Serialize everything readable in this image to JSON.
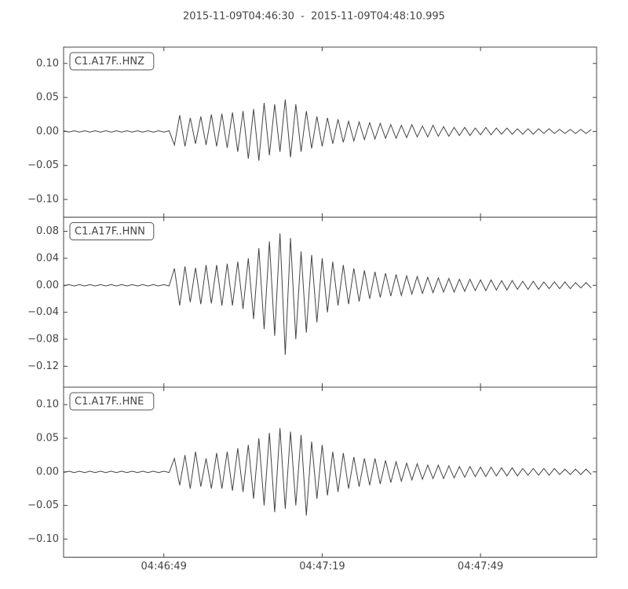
{
  "chart_data": {
    "type": "line",
    "title": "2015-11-09T04:46:30  -  2015-11-09T04:48:10.995",
    "x": [
      0,
      1,
      2,
      3,
      4,
      5,
      6,
      7,
      8,
      9,
      10,
      11,
      12,
      13,
      14,
      15,
      16,
      17,
      18,
      19,
      20,
      21,
      22,
      23,
      24,
      25,
      26,
      27,
      28,
      29,
      30,
      31,
      32,
      33,
      34,
      35,
      36,
      37,
      38,
      39,
      40,
      41,
      42,
      43,
      44,
      45,
      46,
      47,
      48,
      49,
      50,
      51,
      52,
      53,
      54,
      55,
      56,
      57,
      58,
      59,
      60,
      61,
      62,
      63,
      64,
      65,
      66,
      67,
      68,
      69,
      70,
      71,
      72,
      73,
      74,
      75,
      76,
      77,
      78,
      79,
      80,
      81,
      82,
      83,
      84,
      85,
      86,
      87,
      88,
      89,
      90,
      91,
      92,
      93,
      94,
      95,
      96,
      97,
      98,
      99,
      100
    ],
    "xlim": [
      0,
      100.995
    ],
    "xticks": [
      {
        "value": 19,
        "label": "04:46:49"
      },
      {
        "value": 49,
        "label": "04:47:19"
      },
      {
        "value": 79,
        "label": "04:47:49"
      }
    ],
    "panels": [
      {
        "ylim": [
          -0.126,
          0.124
        ],
        "yticks": [
          {
            "value": 0.1,
            "label": "0.10"
          },
          0.05,
          {
            "value": 0,
            "label": "0.00"
          },
          {
            "value": -0.05,
            "label": "−0.05"
          },
          {
            "value": -0.1,
            "label": "−0.10"
          }
        ],
        "series": [
          {
            "name": "C1.A17F..HNZ",
            "color": "#444444",
            "values": [
              0.001,
              -0.001,
              0.001,
              -0.001,
              0.001,
              -0.001,
              0.001,
              -0.001,
              0.001,
              -0.001,
              0.001,
              -0.001,
              0.001,
              -0.001,
              0.001,
              -0.001,
              0.001,
              -0.001,
              0.001,
              -0.001,
              0.001,
              -0.02,
              0.024,
              -0.022,
              0.02,
              -0.018,
              0.022,
              -0.02,
              0.025,
              -0.022,
              0.026,
              -0.024,
              0.028,
              -0.03,
              0.03,
              -0.04,
              0.033,
              -0.043,
              0.042,
              -0.035,
              0.04,
              -0.03,
              0.047,
              -0.038,
              0.04,
              -0.03,
              0.03,
              -0.025,
              0.022,
              -0.022,
              0.02,
              -0.018,
              0.018,
              -0.016,
              0.015,
              -0.014,
              0.014,
              -0.012,
              0.013,
              -0.011,
              0.012,
              -0.01,
              0.01,
              -0.01,
              0.009,
              -0.009,
              0.01,
              -0.008,
              0.008,
              -0.008,
              0.009,
              -0.007,
              0.007,
              -0.007,
              0.006,
              -0.006,
              0.006,
              -0.006,
              0.005,
              -0.005,
              0.006,
              -0.005,
              0.005,
              -0.004,
              0.005,
              -0.004,
              0.004,
              -0.004,
              0.004,
              -0.004,
              0.004,
              -0.003,
              0.004,
              -0.003,
              0.003,
              -0.003,
              0.003,
              -0.003,
              0.003,
              -0.003,
              0.003
            ]
          }
        ]
      },
      {
        "ylim": [
          -0.151,
          0.101
        ],
        "yticks": [
          0.08,
          0.04,
          {
            "value": 0,
            "label": "0.00"
          },
          {
            "value": -0.04,
            "label": "−0.04"
          },
          {
            "value": -0.08,
            "label": "−0.08"
          },
          {
            "value": -0.12,
            "label": "−0.12"
          }
        ],
        "series": [
          {
            "name": "C1.A17F..HNN",
            "color": "#444444",
            "values": [
              -0.001,
              0.001,
              -0.001,
              0.001,
              -0.001,
              0.001,
              -0.001,
              0.001,
              -0.001,
              0.001,
              -0.001,
              0.001,
              -0.001,
              0.001,
              -0.001,
              0.001,
              -0.001,
              0.001,
              -0.001,
              0.001,
              -0.001,
              0.025,
              -0.03,
              0.028,
              -0.025,
              0.026,
              -0.028,
              0.03,
              -0.027,
              0.03,
              -0.03,
              0.032,
              -0.03,
              0.035,
              -0.035,
              0.04,
              -0.05,
              0.055,
              -0.065,
              0.065,
              -0.075,
              0.077,
              -0.103,
              0.07,
              -0.08,
              0.05,
              -0.07,
              0.045,
              -0.055,
              0.04,
              -0.04,
              0.035,
              -0.03,
              0.03,
              -0.028,
              0.025,
              -0.024,
              0.022,
              -0.02,
              0.02,
              -0.018,
              0.018,
              -0.016,
              0.016,
              -0.015,
              0.014,
              -0.013,
              0.013,
              -0.012,
              0.012,
              -0.011,
              0.011,
              -0.01,
              0.01,
              -0.01,
              0.009,
              -0.009,
              0.009,
              -0.008,
              0.008,
              -0.008,
              0.008,
              -0.007,
              0.007,
              -0.007,
              0.007,
              -0.006,
              0.006,
              -0.006,
              0.006,
              -0.006,
              0.005,
              -0.005,
              0.005,
              -0.005,
              0.005,
              -0.005,
              0.004,
              -0.004,
              0.004,
              -0.004
            ]
          }
        ]
      },
      {
        "ylim": [
          -0.127,
          0.126
        ],
        "yticks": [
          {
            "value": 0.1,
            "label": "0.10"
          },
          0.05,
          {
            "value": 0,
            "label": "0.00"
          },
          {
            "value": -0.05,
            "label": "−0.05"
          },
          {
            "value": -0.1,
            "label": "−0.10"
          }
        ],
        "series": [
          {
            "name": "C1.A17F..HNE",
            "color": "#444444",
            "values": [
              -0.001,
              0.001,
              -0.001,
              0.001,
              -0.001,
              0.001,
              -0.001,
              0.001,
              -0.001,
              0.001,
              -0.001,
              0.001,
              -0.001,
              0.001,
              -0.001,
              0.001,
              -0.001,
              0.001,
              -0.001,
              0.001,
              -0.001,
              0.02,
              -0.02,
              0.025,
              -0.025,
              0.03,
              -0.022,
              0.02,
              -0.025,
              0.028,
              -0.025,
              0.03,
              -0.028,
              0.035,
              -0.03,
              0.04,
              -0.04,
              0.05,
              -0.05,
              0.058,
              -0.06,
              0.065,
              -0.055,
              0.06,
              -0.05,
              0.055,
              -0.065,
              0.045,
              -0.04,
              0.04,
              -0.035,
              0.03,
              -0.03,
              0.028,
              -0.025,
              0.022,
              -0.022,
              0.02,
              -0.02,
              0.02,
              -0.018,
              0.017,
              -0.016,
              0.015,
              -0.014,
              0.013,
              -0.012,
              0.012,
              -0.011,
              0.01,
              -0.01,
              0.01,
              -0.01,
              0.009,
              -0.009,
              0.008,
              -0.008,
              0.008,
              -0.007,
              0.007,
              -0.007,
              0.007,
              -0.006,
              0.006,
              -0.006,
              0.006,
              -0.006,
              0.005,
              -0.005,
              0.005,
              -0.005,
              0.005,
              -0.005,
              0.005,
              -0.004,
              0.004,
              -0.004,
              0.004,
              -0.004,
              0.004,
              -0.004
            ]
          }
        ]
      }
    ]
  }
}
